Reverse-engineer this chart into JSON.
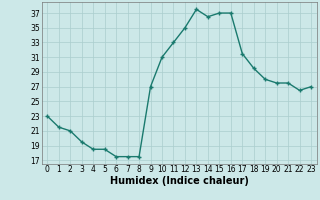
{
  "x": [
    0,
    1,
    2,
    3,
    4,
    5,
    6,
    7,
    8,
    9,
    10,
    11,
    12,
    13,
    14,
    15,
    16,
    17,
    18,
    19,
    20,
    21,
    22,
    23
  ],
  "y": [
    23,
    21.5,
    21,
    19.5,
    18.5,
    18.5,
    17.5,
    17.5,
    17.5,
    27,
    31,
    33,
    35,
    37.5,
    36.5,
    37,
    37,
    31.5,
    29.5,
    28,
    27.5,
    27.5,
    26.5,
    27
  ],
  "xlabel": "Humidex (Indice chaleur)",
  "yticks": [
    17,
    19,
    21,
    23,
    25,
    27,
    29,
    31,
    33,
    35,
    37
  ],
  "xticks": [
    0,
    1,
    2,
    3,
    4,
    5,
    6,
    7,
    8,
    9,
    10,
    11,
    12,
    13,
    14,
    15,
    16,
    17,
    18,
    19,
    20,
    21,
    22,
    23
  ],
  "ylim": [
    16.5,
    38.5
  ],
  "xlim": [
    -0.5,
    23.5
  ],
  "line_color": "#1a7a6e",
  "bg_color": "#cce8e8",
  "grid_color": "#aacece",
  "markersize": 2.5,
  "linewidth": 1.0,
  "tick_fontsize": 5.5,
  "xlabel_fontsize": 7
}
